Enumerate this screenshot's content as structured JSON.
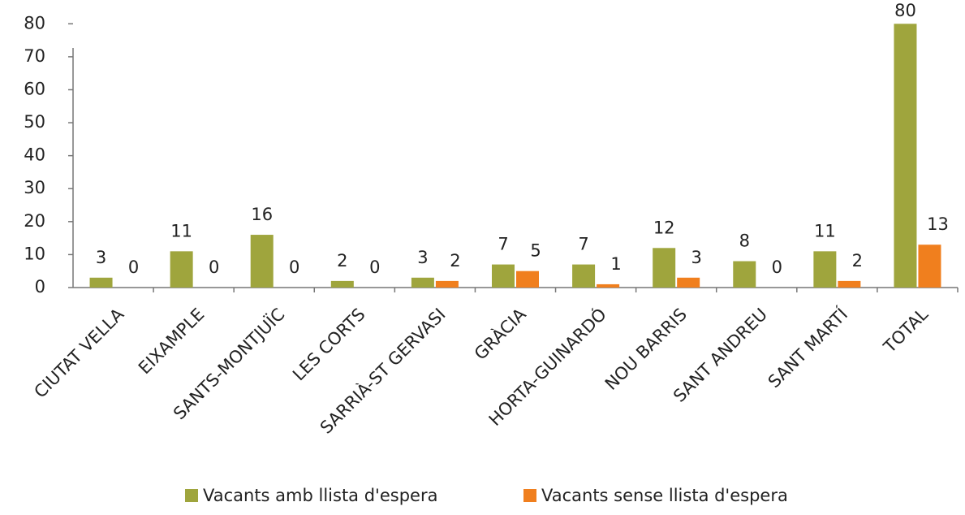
{
  "chart_data": {
    "type": "bar",
    "categories": [
      "CIUTAT VELLA",
      "EIXAMPLE",
      "SANTS-MONTJUÏC",
      "LES CORTS",
      "SARRIÀ-ST GERVASI",
      "GRÀCIA",
      "HORTA-GUINARDÓ",
      "NOU BARRIS",
      "SANT ANDREU",
      "SANT MARTÍ",
      "TOTAL"
    ],
    "series": [
      {
        "name": "Vacants amb llista d'espera",
        "color": "#9fa53d",
        "values": [
          3,
          11,
          16,
          2,
          3,
          7,
          7,
          12,
          8,
          11,
          80
        ]
      },
      {
        "name": "Vacants sense llista d'espera",
        "color": "#f07f1e",
        "values": [
          0,
          0,
          0,
          0,
          2,
          5,
          1,
          3,
          0,
          2,
          13
        ]
      }
    ],
    "ylim": [
      0,
      85
    ],
    "yticks": [
      0,
      10,
      20,
      30,
      40,
      50,
      60,
      70,
      80
    ],
    "legend": "bottom"
  }
}
